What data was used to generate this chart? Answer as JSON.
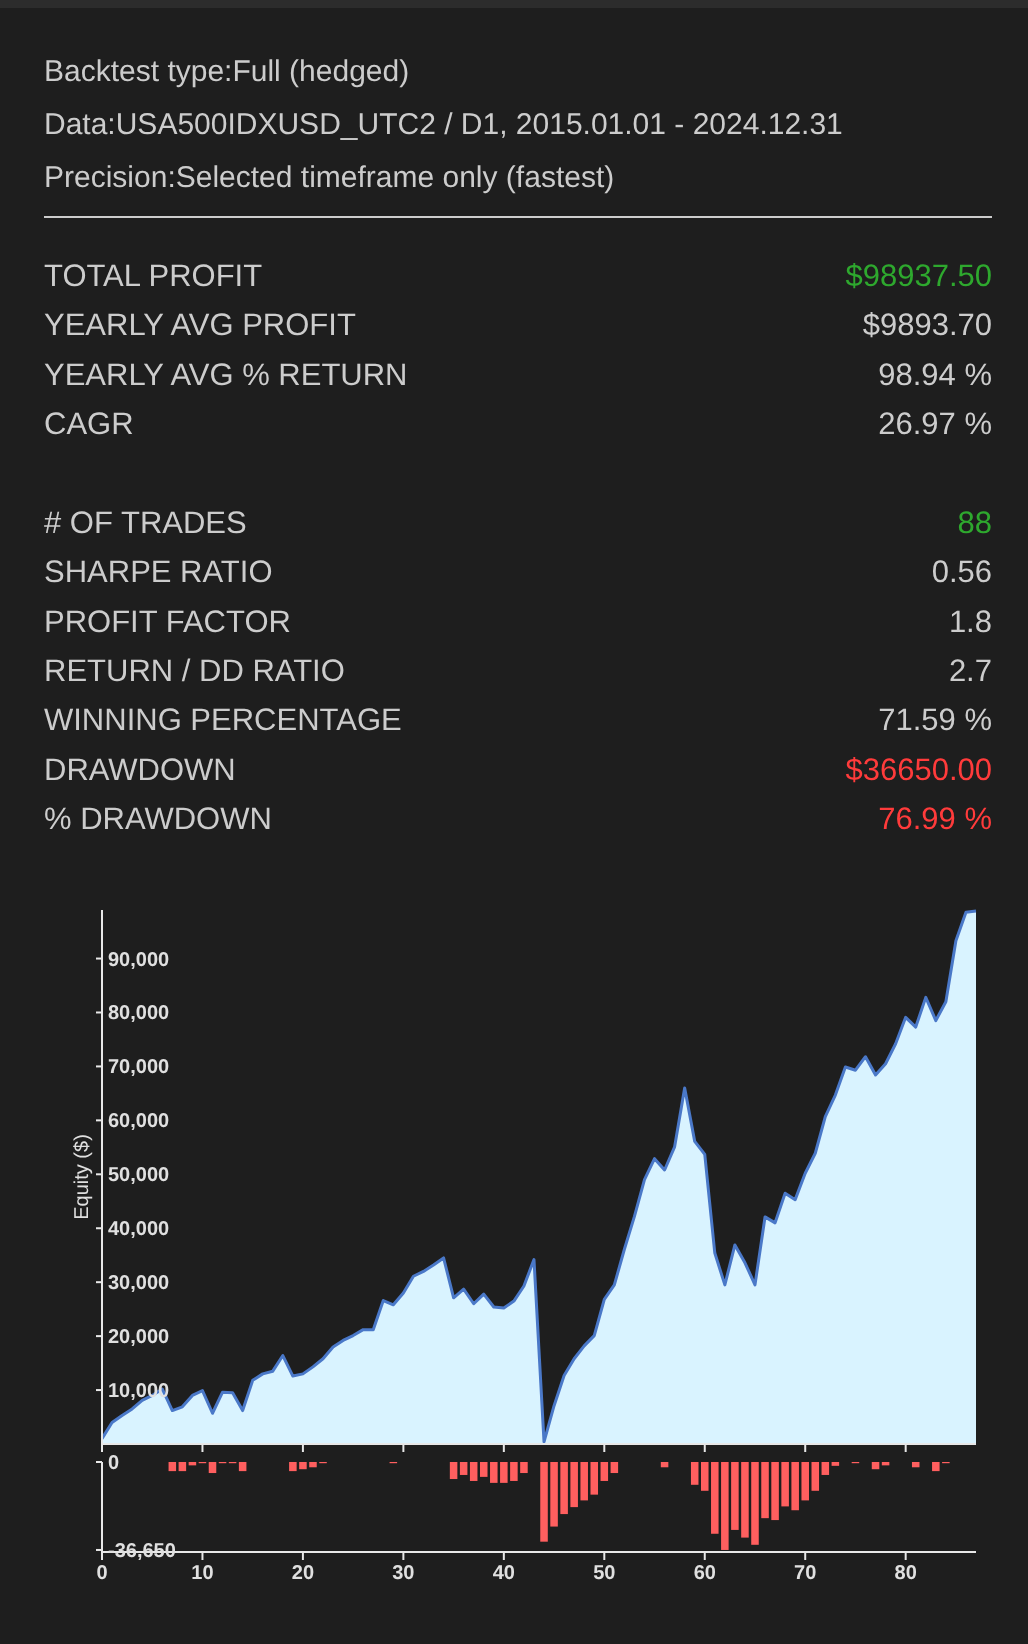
{
  "chart_data": [
    {
      "type": "other",
      "annotations": [
        "Backtest type:Full (hedged)",
        "Data:USA500IDXUSD_UTC2 / D1, 2015.01.01 - 2024.12.31",
        "Precision:Selected timeframe only (fastest)"
      ],
      "categories": [
        "TOTAL PROFIT",
        "YEARLY AVG PROFIT",
        "YEARLY AVG % RETURN",
        "CAGR",
        null,
        "# OF TRADES",
        "SHARPE RATIO",
        "PROFIT FACTOR",
        "RETURN / DD RATIO",
        "WINNING PERCENTAGE",
        "DRAWDOWN",
        "% DRAWDOWN"
      ],
      "value_labels": [
        "$98937.50",
        "$9893.70",
        "98.94 %",
        "26.97 %",
        null,
        "88",
        "0.56",
        "1.8",
        "2.7",
        "71.59 %",
        "$36650.00",
        "76.99 %"
      ],
      "colors": [
        "#2ea82e",
        "#cccccc",
        "#cccccc",
        "#cccccc",
        null,
        "#2ea82e",
        "#cccccc",
        "#cccccc",
        "#cccccc",
        "#cccccc",
        "#ff3b3b",
        "#ff3b3b"
      ]
    },
    {
      "type": "area",
      "ylabel": "Equity ($)",
      "xlim": [
        0,
        87
      ],
      "xticks": [
        0,
        10,
        20,
        30,
        40,
        50,
        60,
        70,
        80
      ],
      "ylim": [
        0,
        99000
      ],
      "yticks": [
        {
          "value": 10000,
          "label": "10,000"
        },
        {
          "value": 20000,
          "label": "20,000"
        },
        {
          "value": 30000,
          "label": "30,000"
        },
        {
          "value": 40000,
          "label": "40,000"
        },
        {
          "value": 50000,
          "label": "50,000"
        },
        {
          "value": 60000,
          "label": "60,000"
        },
        {
          "value": 70000,
          "label": "70,000"
        },
        {
          "value": 80000,
          "label": "80,000"
        },
        {
          "value": 90000,
          "label": "90,000"
        }
      ],
      "tick_labels": "y",
      "series": [
        {
          "color": "#4a78c8",
          "x": [
            0,
            1,
            2,
            3,
            4,
            5,
            6,
            7,
            8,
            9,
            10,
            11,
            12,
            13,
            14,
            15,
            16,
            17,
            18,
            19,
            20,
            21,
            22,
            23,
            24,
            25,
            26,
            27,
            28,
            29,
            30,
            31,
            32,
            33,
            34,
            35,
            36,
            37,
            38,
            39,
            40,
            41,
            42,
            43,
            44,
            45,
            46,
            47,
            48,
            49,
            50,
            51,
            52,
            53,
            54,
            55,
            56,
            57,
            58,
            59,
            60,
            61,
            62,
            63,
            64,
            65,
            66,
            67,
            68,
            69,
            70,
            71,
            72,
            73,
            74,
            75,
            76,
            77,
            78,
            79,
            80,
            81,
            82,
            83,
            84,
            85,
            86,
            87
          ],
          "values": [
            1000,
            4000,
            5300,
            6500,
            8100,
            9000,
            10200,
            6200,
            6900,
            9000,
            9900,
            5700,
            9600,
            9500,
            6200,
            11800,
            13000,
            13500,
            16400,
            12600,
            13000,
            14300,
            15800,
            18000,
            19200,
            20100,
            21200,
            21200,
            26600,
            25800,
            28000,
            31100,
            32000,
            33200,
            34500,
            27100,
            28700,
            26000,
            27800,
            25400,
            25200,
            26500,
            29300,
            34200,
            400,
            7100,
            12700,
            15800,
            18200,
            20100,
            26800,
            29500,
            36100,
            42200,
            49000,
            52900,
            50800,
            55100,
            66000,
            56100,
            53700,
            35400,
            29500,
            36900,
            33600,
            29500,
            42100,
            41000,
            46500,
            45300,
            50200,
            53900,
            60700,
            64700,
            69900,
            69300,
            71800,
            68400,
            70500,
            74200,
            79100,
            77300,
            82800,
            78500,
            82000,
            93300,
            98600,
            98800
          ]
        }
      ]
    },
    {
      "type": "bar",
      "xlim": [
        0,
        87
      ],
      "xticks": [
        0,
        10,
        20,
        30,
        40,
        50,
        60,
        70,
        80
      ],
      "ylim": [
        -37500,
        0
      ],
      "yticks": [
        0,
        {
          "value": -36650,
          "label": "-36,650"
        }
      ],
      "series": [
        {
          "color": "#ff5f5f",
          "x": [
            7,
            8,
            9,
            10,
            11,
            12,
            13,
            14,
            19,
            20,
            21,
            22,
            29,
            35,
            36,
            37,
            38,
            39,
            40,
            41,
            42,
            44,
            45,
            46,
            47,
            48,
            49,
            50,
            51,
            56,
            59,
            60,
            61,
            62,
            63,
            64,
            65,
            66,
            67,
            68,
            69,
            70,
            71,
            72,
            73,
            75,
            77,
            78,
            81,
            83,
            84
          ],
          "values": [
            -3800,
            -3800,
            -1400,
            -500,
            -4600,
            -500,
            -500,
            -3800,
            -3800,
            -3000,
            -2200,
            -500,
            -500,
            -7100,
            -5400,
            -7900,
            -6200,
            -8700,
            -8700,
            -7900,
            -4600,
            -33200,
            -26900,
            -21700,
            -18800,
            -16000,
            -13600,
            -7900,
            -4600,
            -2200,
            -9500,
            -12000,
            -29900,
            -36650,
            -28300,
            -31500,
            -34500,
            -23400,
            -24200,
            -18500,
            -20100,
            -16000,
            -12000,
            -5400,
            -1600,
            -500,
            -3000,
            -1400,
            -2200,
            -3800,
            -500
          ]
        }
      ]
    }
  ]
}
